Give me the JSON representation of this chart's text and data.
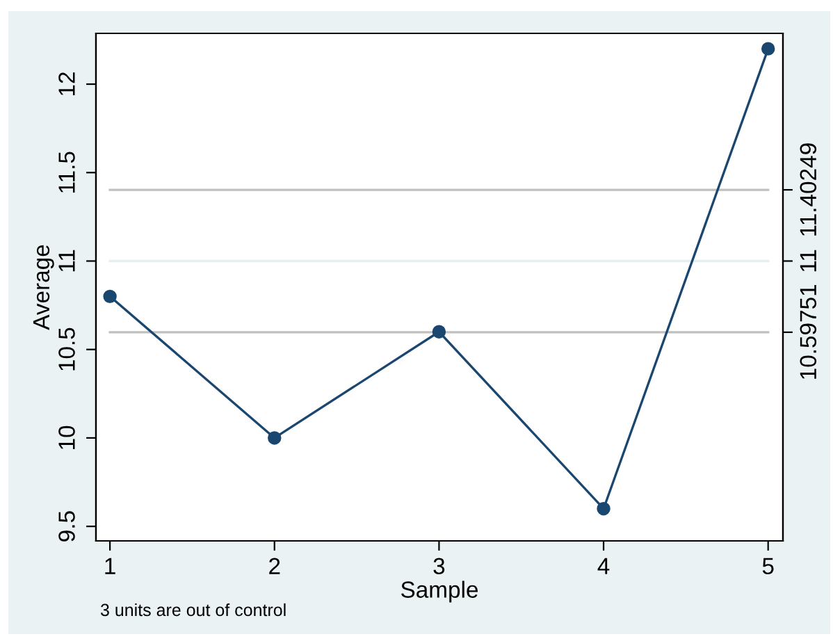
{
  "chart_data": {
    "type": "line",
    "xlabel": "Sample",
    "ylabel": "Average",
    "x": [
      1,
      2,
      3,
      4,
      5
    ],
    "series": [
      {
        "color": "#1a476f",
        "values": [
          10.8,
          10.0,
          10.6,
          9.6,
          12.2
        ]
      }
    ],
    "marker": "circle",
    "xlim": [
      0.915,
      5.09
    ],
    "xticks": [
      1,
      2,
      3,
      4,
      5
    ],
    "ylim": [
      9.418,
      12.287
    ],
    "yticks": [
      9.5,
      10,
      10.5,
      11,
      11.5,
      12
    ],
    "y2lim": [
      9.418,
      12.287
    ],
    "y2ticks": [
      10.59751,
      11,
      11.40249
    ],
    "ref_lines": [
      {
        "axis": "y",
        "value": 11.40249,
        "color": "#c0c0c0"
      },
      {
        "axis": "y",
        "value": 11,
        "color": "#e6eef0"
      },
      {
        "axis": "y",
        "value": 10.59751,
        "color": "#c0c0c0"
      }
    ],
    "annotations": [
      "3 units are out of control"
    ]
  }
}
